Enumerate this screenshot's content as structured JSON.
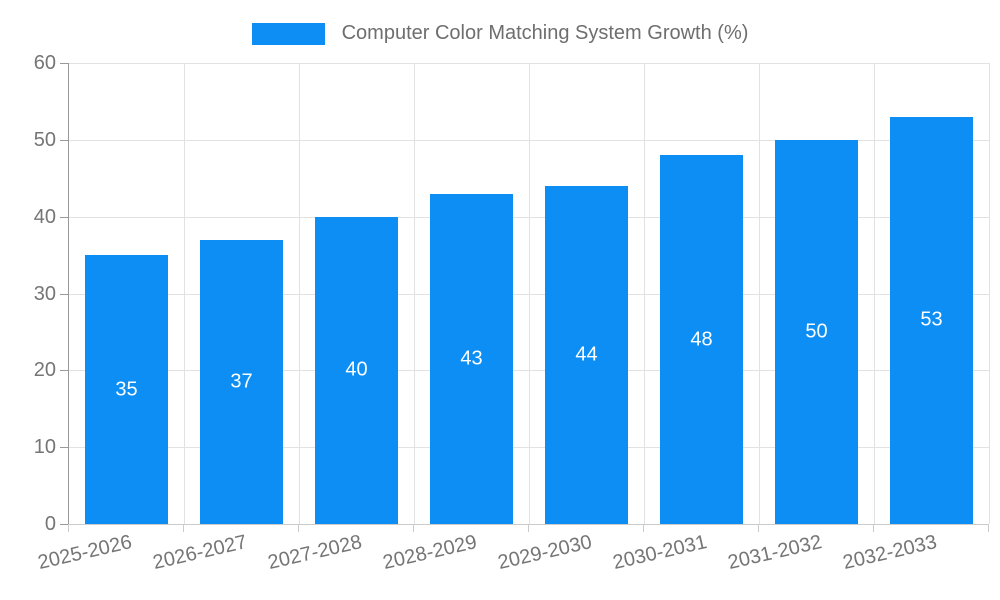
{
  "legend": {
    "label": "Computer Color Matching System Growth (%)"
  },
  "chart_data": {
    "type": "bar",
    "title": "Computer Color Matching System Growth (%)",
    "categories": [
      "2025-2026",
      "2026-2027",
      "2027-2028",
      "2028-2029",
      "2029-2030",
      "2030-2031",
      "2031-2032",
      "2032-2033"
    ],
    "values": [
      35,
      37,
      40,
      43,
      44,
      48,
      50,
      53
    ],
    "xlabel": "",
    "ylabel": "",
    "ylim": [
      0,
      60
    ],
    "yticks": [
      0,
      10,
      20,
      30,
      40,
      50,
      60
    ],
    "grid": true,
    "legend_position": "top-center",
    "bar_color": "#0d8ef4",
    "bar_label_color": "#ffffff",
    "axis_label_color": "#757575",
    "grid_color": "#e2e2e2",
    "axis_line_color": "#999999",
    "tick_color": "#cccccc"
  }
}
